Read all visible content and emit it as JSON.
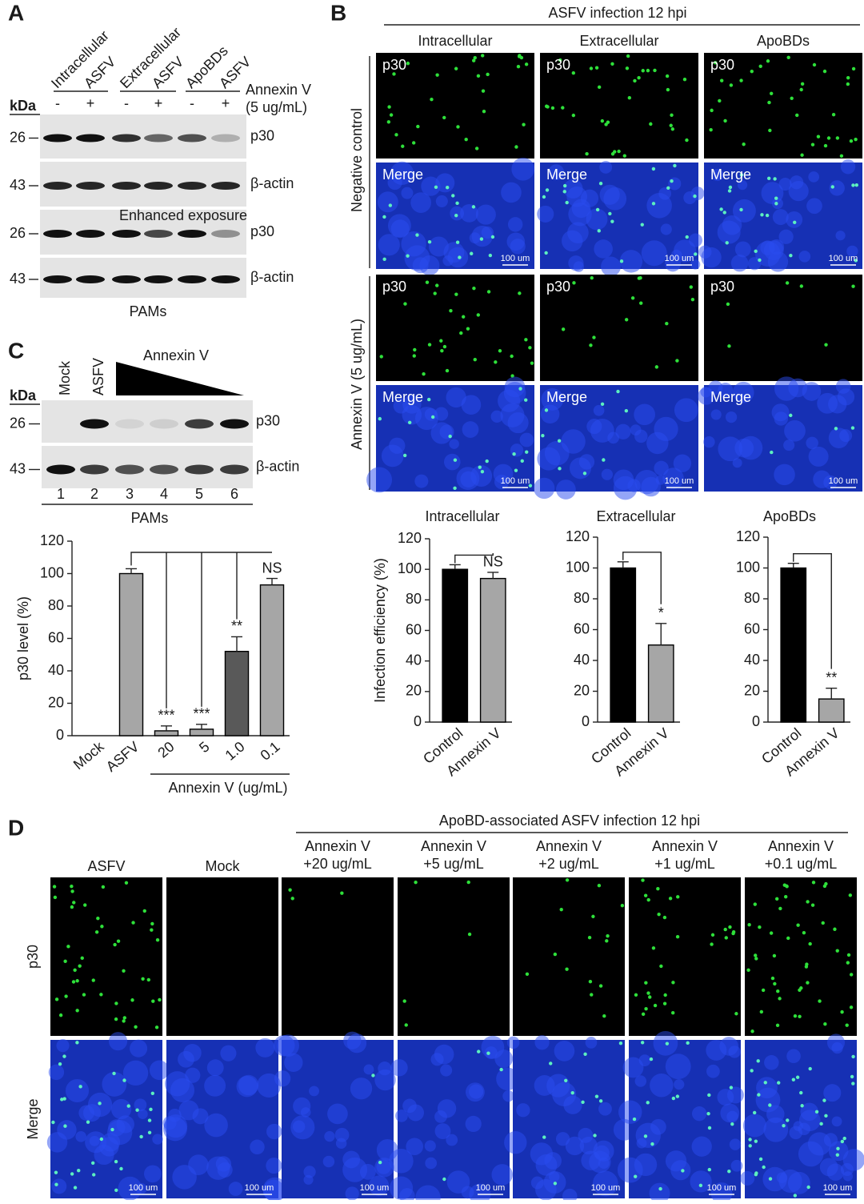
{
  "panel_a": {
    "label": "A",
    "lanes": [
      "Intracellular",
      "ASFV",
      "Extracellular",
      "ASFV",
      "ApoBDs",
      "ASFV"
    ],
    "treatment": [
      "Annexin V",
      "(5 ug/mL)"
    ],
    "kda": "kDa",
    "signs": [
      "-",
      "+",
      "-",
      "+",
      "-",
      "+"
    ],
    "blots": [
      {
        "marker": "26",
        "protein": "p30"
      },
      {
        "marker": "43",
        "protein": "β-actin"
      },
      {
        "marker": "26",
        "protein": "p30",
        "note": "Enhanced exposure"
      },
      {
        "marker": "43",
        "protein": "β-actin"
      }
    ],
    "cells": "PAMs"
  },
  "panel_b": {
    "label": "B",
    "title": "ASFV infection 12 hpi",
    "columns": [
      "Intracellular",
      "Extracellular",
      "ApoBDs"
    ],
    "rows": [
      "Negative control",
      "Annexin V (5 ug/mL)"
    ],
    "channels": [
      "p30",
      "Merge"
    ],
    "scale_bar": "100 um"
  },
  "panel_c": {
    "label": "C",
    "lanes": [
      "Mock",
      "ASFV"
    ],
    "treatment": "Annexin V",
    "kda": "kDa",
    "blots": [
      {
        "marker": "26",
        "protein": "p30"
      },
      {
        "marker": "43",
        "protein": "β-actin"
      }
    ],
    "lane_numbers": [
      "1",
      "2",
      "3",
      "4",
      "5",
      "6"
    ],
    "cells": "PAMs"
  },
  "panel_d": {
    "label": "D",
    "title": "ApoBD-associated ASFV infection 12 hpi",
    "columns": [
      [
        "ASFV"
      ],
      [
        "Mock"
      ],
      [
        "Annexin V",
        "+20 ug/mL"
      ],
      [
        "Annexin V",
        "+5 ug/mL"
      ],
      [
        "Annexin V",
        "+2 ug/mL"
      ],
      [
        "Annexin V",
        "+1 ug/mL"
      ],
      [
        "Annexin V",
        "+0.1 ug/mL"
      ]
    ],
    "rows": [
      "p30",
      "Merge"
    ],
    "scale_bar": "100 um"
  },
  "chart_data": [
    {
      "type": "bar",
      "title": "Intracellular",
      "ylabel": "Infection efficiency (%)",
      "categories": [
        "Control",
        "Annexin V"
      ],
      "values": [
        100,
        94
      ],
      "errors": [
        3,
        4
      ],
      "colors": [
        "#000000",
        "#a6a6a6"
      ],
      "ylim": [
        0,
        120
      ],
      "yticks": [
        0,
        20,
        40,
        60,
        80,
        100,
        120
      ],
      "significance": "NS"
    },
    {
      "type": "bar",
      "title": "Extracellular",
      "categories": [
        "Control",
        "Annexin V"
      ],
      "values": [
        100,
        50
      ],
      "errors": [
        4,
        14
      ],
      "colors": [
        "#000000",
        "#a6a6a6"
      ],
      "ylim": [
        0,
        120
      ],
      "yticks": [
        0,
        20,
        40,
        60,
        80,
        100,
        120
      ],
      "significance": "*"
    },
    {
      "type": "bar",
      "title": "ApoBDs",
      "categories": [
        "Control",
        "Annexin V"
      ],
      "values": [
        100,
        15
      ],
      "errors": [
        3,
        7
      ],
      "colors": [
        "#000000",
        "#a6a6a6"
      ],
      "ylim": [
        0,
        120
      ],
      "yticks": [
        0,
        20,
        40,
        60,
        80,
        100,
        120
      ],
      "significance": "**"
    },
    {
      "type": "bar",
      "ylabel": "p30 level (%)",
      "categories": [
        "Mock",
        "ASFV",
        "20",
        "5",
        "1.0",
        "0.1"
      ],
      "values": [
        0,
        100,
        3,
        4,
        52,
        93
      ],
      "errors": [
        null,
        3,
        3,
        3,
        9,
        4
      ],
      "colors": [
        "#a6a6a6",
        "#a6a6a6",
        "#a6a6a6",
        "#a6a6a6",
        "#595959",
        "#a6a6a6"
      ],
      "ylim": [
        0,
        120
      ],
      "yticks": [
        0,
        20,
        40,
        60,
        80,
        100,
        120
      ],
      "significance": [
        null,
        null,
        "***",
        "***",
        "**",
        "NS"
      ],
      "group_label": "Annexin V (ug/mL)"
    }
  ]
}
